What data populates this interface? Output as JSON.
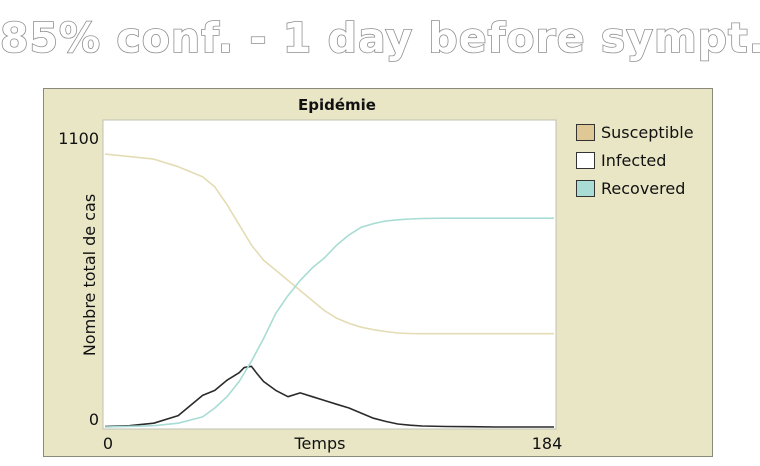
{
  "headline": "85% conf. - 1 day before sympt.",
  "plot": {
    "title": "Epidémie",
    "xlabel": "Temps",
    "ylabel": "Nombre total de cas",
    "x_min_label": "0",
    "x_max_label": "184",
    "y_min_label": "0",
    "y_max_label": "1100"
  },
  "legend": [
    {
      "name": "Susceptible",
      "color": "#e0c896"
    },
    {
      "name": "Infected",
      "color": "#ffffff"
    },
    {
      "name": "Recovered",
      "color": "#a8dcd4"
    }
  ],
  "chart_data": {
    "type": "line",
    "title": "Epidémie",
    "xlabel": "Temps",
    "ylabel": "Nombre total de cas",
    "xlim": [
      0,
      184
    ],
    "ylim": [
      0,
      1100
    ],
    "grid": false,
    "legend_position": "right",
    "series": [
      {
        "name": "Susceptible",
        "color": "#e4dcb4",
        "x": [
          0,
          10,
          20,
          30,
          40,
          45,
          50,
          55,
          60,
          65,
          70,
          75,
          80,
          85,
          90,
          95,
          100,
          105,
          110,
          115,
          120,
          125,
          130,
          140,
          150,
          160,
          170,
          184
        ],
        "y": [
          1080,
          1070,
          1060,
          1030,
          990,
          950,
          880,
          800,
          720,
          660,
          620,
          580,
          540,
          500,
          460,
          430,
          410,
          395,
          385,
          378,
          372,
          370,
          369,
          369,
          369,
          369,
          369,
          369
        ]
      },
      {
        "name": "Infected",
        "color": "#2b2b2b",
        "x": [
          0,
          10,
          20,
          30,
          35,
          40,
          45,
          50,
          55,
          57,
          60,
          62,
          65,
          70,
          75,
          80,
          85,
          90,
          95,
          100,
          105,
          110,
          115,
          120,
          125,
          130,
          140,
          150,
          160,
          170,
          184
        ],
        "y": [
          2,
          5,
          15,
          45,
          85,
          125,
          145,
          185,
          215,
          235,
          240,
          215,
          180,
          145,
          120,
          135,
          120,
          105,
          90,
          75,
          55,
          35,
          22,
          12,
          7,
          4,
          2,
          1,
          0,
          0,
          0
        ]
      },
      {
        "name": "Recovered",
        "color": "#a8dcd4",
        "x": [
          0,
          20,
          30,
          40,
          45,
          50,
          55,
          60,
          65,
          70,
          75,
          80,
          85,
          90,
          95,
          100,
          105,
          110,
          115,
          120,
          125,
          130,
          140,
          150,
          160,
          170,
          184
        ],
        "y": [
          0,
          5,
          15,
          40,
          75,
          120,
          180,
          260,
          350,
          450,
          520,
          580,
          630,
          670,
          720,
          760,
          790,
          805,
          815,
          820,
          823,
          825,
          826,
          826,
          826,
          826,
          826
        ]
      }
    ]
  }
}
